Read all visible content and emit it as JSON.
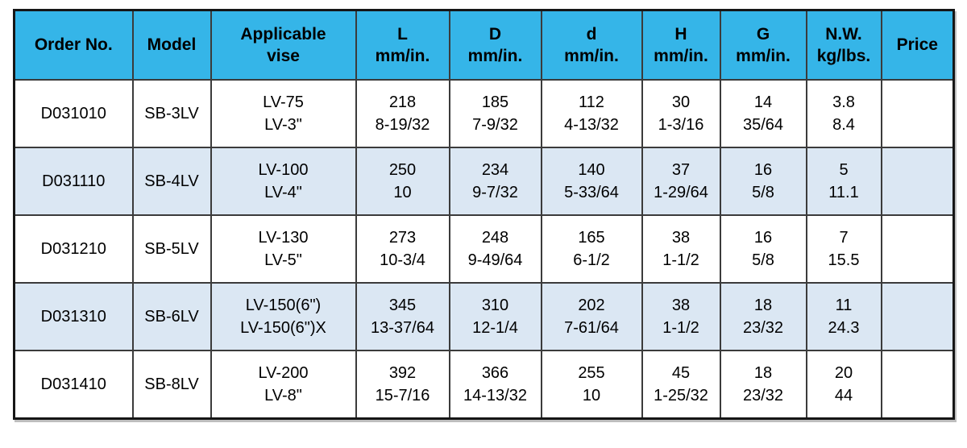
{
  "colors": {
    "header_bg": "#35b5e8",
    "row_bg": "#ffffff",
    "row_alt_bg": "#dbe7f3",
    "outer_border": "#161616",
    "inner_border": "#3b3b3b",
    "text": "#000000"
  },
  "table": {
    "columns": [
      {
        "key": "order-no",
        "lines": [
          "Order No."
        ]
      },
      {
        "key": "model",
        "lines": [
          "Model"
        ]
      },
      {
        "key": "applicable-vise",
        "lines": [
          "Applicable",
          "vise"
        ]
      },
      {
        "key": "dim-l",
        "lines": [
          "L",
          "mm/in."
        ]
      },
      {
        "key": "dim-d-upper",
        "lines": [
          "D",
          "mm/in."
        ]
      },
      {
        "key": "dim-d-lower",
        "lines": [
          "d",
          "mm/in."
        ]
      },
      {
        "key": "dim-h",
        "lines": [
          "H",
          "mm/in."
        ]
      },
      {
        "key": "dim-g",
        "lines": [
          "G",
          "mm/in."
        ]
      },
      {
        "key": "net-weight",
        "lines": [
          "N.W.",
          "kg/lbs."
        ]
      },
      {
        "key": "price",
        "lines": [
          "Price"
        ]
      }
    ],
    "rows": [
      {
        "alt": false,
        "cells": [
          [
            "D031010"
          ],
          [
            "SB-3LV"
          ],
          [
            "LV-75",
            "LV-3\""
          ],
          [
            "218",
            "8-19/32"
          ],
          [
            "185",
            "7-9/32"
          ],
          [
            "112",
            "4-13/32"
          ],
          [
            "30",
            "1-3/16"
          ],
          [
            "14",
            "35/64"
          ],
          [
            "3.8",
            "8.4"
          ],
          [
            ""
          ]
        ]
      },
      {
        "alt": true,
        "cells": [
          [
            "D031110"
          ],
          [
            "SB-4LV"
          ],
          [
            "LV-100",
            "LV-4\""
          ],
          [
            "250",
            "10"
          ],
          [
            "234",
            "9-7/32"
          ],
          [
            "140",
            "5-33/64"
          ],
          [
            "37",
            "1-29/64"
          ],
          [
            "16",
            "5/8"
          ],
          [
            "5",
            "11.1"
          ],
          [
            ""
          ]
        ]
      },
      {
        "alt": false,
        "cells": [
          [
            "D031210"
          ],
          [
            "SB-5LV"
          ],
          [
            "LV-130",
            "LV-5\""
          ],
          [
            "273",
            "10-3/4"
          ],
          [
            "248",
            "9-49/64"
          ],
          [
            "165",
            "6-1/2"
          ],
          [
            "38",
            "1-1/2"
          ],
          [
            "16",
            "5/8"
          ],
          [
            "7",
            "15.5"
          ],
          [
            ""
          ]
        ]
      },
      {
        "alt": true,
        "cells": [
          [
            "D031310"
          ],
          [
            "SB-6LV"
          ],
          [
            "LV-150(6\")",
            "LV-150(6\")X"
          ],
          [
            "345",
            "13-37/64"
          ],
          [
            "310",
            "12-1/4"
          ],
          [
            "202",
            "7-61/64"
          ],
          [
            "38",
            "1-1/2"
          ],
          [
            "18",
            "23/32"
          ],
          [
            "11",
            "24.3"
          ],
          [
            ""
          ]
        ]
      },
      {
        "alt": false,
        "cells": [
          [
            "D031410"
          ],
          [
            "SB-8LV"
          ],
          [
            "LV-200",
            "LV-8\""
          ],
          [
            "392",
            "15-7/16"
          ],
          [
            "366",
            "14-13/32"
          ],
          [
            "255",
            "10"
          ],
          [
            "45",
            "1-25/32"
          ],
          [
            "18",
            "23/32"
          ],
          [
            "20",
            "44"
          ],
          [
            ""
          ]
        ]
      }
    ]
  }
}
